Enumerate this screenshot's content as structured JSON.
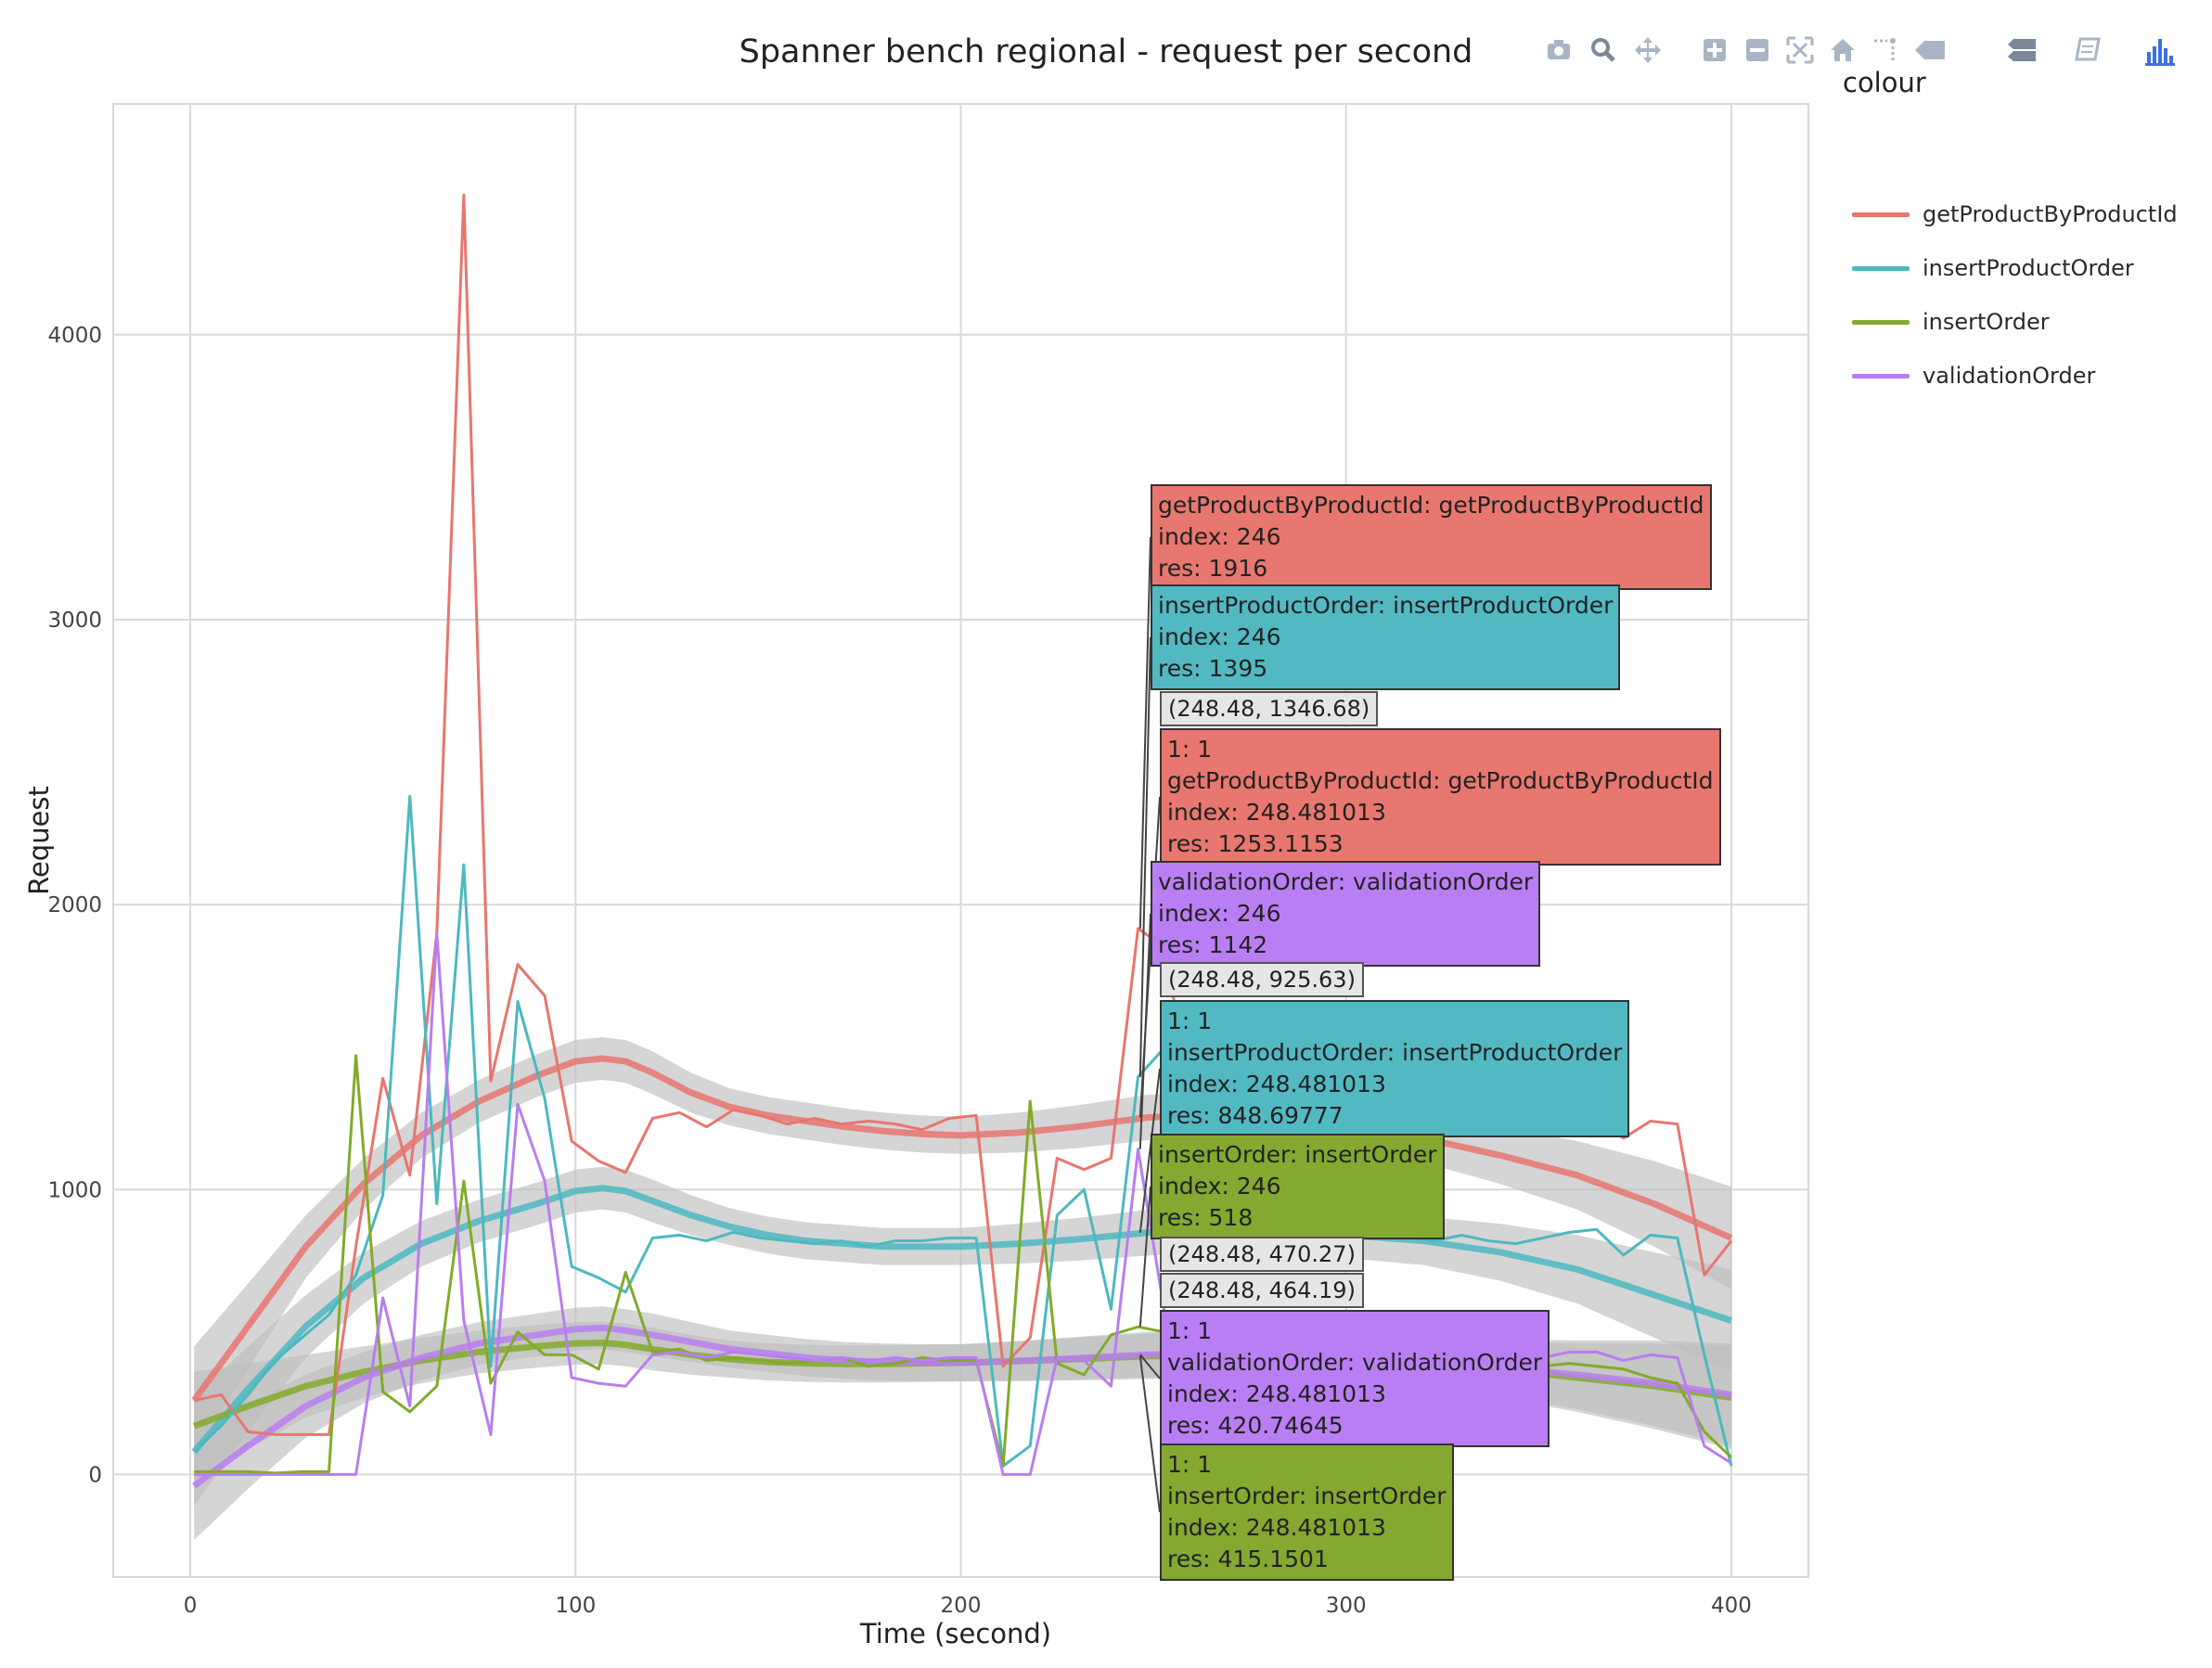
{
  "toolbar": {
    "buttons": [
      {
        "icon": "camera-icon",
        "label": "Download plot as a png"
      },
      {
        "icon": "zoom-icon",
        "label": "Zoom"
      },
      {
        "icon": "pan-icon",
        "label": "Pan"
      },
      {
        "icon": "zoom-in-icon",
        "label": "Zoom in"
      },
      {
        "icon": "zoom-out-icon",
        "label": "Zoom out"
      },
      {
        "icon": "autoscale-icon",
        "label": "Autoscale"
      },
      {
        "icon": "home-icon",
        "label": "Reset axes"
      },
      {
        "icon": "spike-lines-icon",
        "label": "Toggle Spike Lines"
      },
      {
        "icon": "hover-closest-icon",
        "label": "Show closest data on hover"
      },
      {
        "icon": "hover-compare-icon",
        "label": "Compare data on hover"
      },
      {
        "icon": "edit-chart-icon",
        "label": "Edit in Chart Studio"
      },
      {
        "icon": "plotly-logo-icon",
        "label": "Produced with Plotly"
      }
    ]
  },
  "chart_data": {
    "type": "line",
    "title": "Spanner bench regional - request per second",
    "xlabel": "Time (second)",
    "ylabel": "Request",
    "xlim": [
      -20,
      420
    ],
    "ylim": [
      -360,
      4810
    ],
    "xticks": [
      0,
      100,
      200,
      300,
      400
    ],
    "yticks": [
      0,
      1000,
      2000,
      3000,
      4000
    ],
    "grid": true,
    "legend_title": "colour",
    "legend_position": "right",
    "colors": {
      "getProductByProductId": "#E7766F",
      "insertProductOrder": "#4CB9BF",
      "insertOrder": "#83AA2A",
      "validationOrder": "#B87EF0",
      "smooth_band": "#BFBFBF"
    },
    "series": [
      {
        "name": "getProductByProductId",
        "x": [
          1,
          8,
          15,
          22,
          29,
          36,
          43,
          50,
          57,
          64,
          71,
          78,
          85,
          92,
          99,
          106,
          113,
          120,
          127,
          134,
          141,
          148,
          155,
          162,
          169,
          176,
          183,
          190,
          197,
          204,
          211,
          218,
          225,
          232,
          239,
          246,
          253,
          260,
          267,
          274,
          281,
          288,
          295,
          302,
          309,
          316,
          323,
          330,
          337,
          344,
          351,
          358,
          365,
          372,
          379,
          386,
          393,
          400
        ],
        "y": [
          260,
          280,
          150,
          140,
          140,
          140,
          800,
          1390,
          1050,
          1900,
          4490,
          1380,
          1790,
          1680,
          1170,
          1100,
          1060,
          1250,
          1270,
          1220,
          1280,
          1260,
          1230,
          1250,
          1230,
          1240,
          1230,
          1210,
          1250,
          1260,
          380,
          480,
          1110,
          1070,
          1110,
          1916,
          1850,
          1290,
          1240,
          1270,
          1250,
          1230,
          1250,
          1220,
          1240,
          1210,
          1190,
          1200,
          1230,
          1210,
          1260,
          1280,
          1250,
          1180,
          1240,
          1230,
          700,
          820
        ]
      },
      {
        "name": "insertProductOrder",
        "x": [
          1,
          8,
          15,
          22,
          29,
          36,
          43,
          50,
          57,
          64,
          71,
          78,
          85,
          92,
          99,
          106,
          113,
          120,
          127,
          134,
          141,
          148,
          155,
          162,
          169,
          176,
          183,
          190,
          197,
          204,
          211,
          218,
          225,
          232,
          239,
          246,
          253,
          260,
          267,
          274,
          281,
          288,
          295,
          302,
          309,
          316,
          323,
          330,
          337,
          344,
          351,
          358,
          365,
          372,
          379,
          386,
          393,
          400
        ],
        "y": [
          80,
          170,
          280,
          400,
          480,
          560,
          700,
          980,
          2380,
          950,
          2140,
          380,
          1660,
          1320,
          730,
          690,
          640,
          830,
          840,
          820,
          850,
          830,
          820,
          810,
          820,
          800,
          820,
          820,
          830,
          830,
          30,
          100,
          910,
          1000,
          580,
          1395,
          1500,
          1280,
          1100,
          1040,
          1000,
          960,
          900,
          860,
          840,
          830,
          820,
          840,
          820,
          810,
          830,
          850,
          860,
          770,
          840,
          830,
          420,
          30
        ]
      },
      {
        "name": "insertOrder",
        "x": [
          1,
          8,
          15,
          22,
          29,
          36,
          43,
          50,
          57,
          64,
          71,
          78,
          85,
          92,
          99,
          106,
          113,
          120,
          127,
          134,
          141,
          148,
          155,
          162,
          169,
          176,
          183,
          190,
          197,
          204,
          211,
          218,
          225,
          232,
          239,
          246,
          253,
          260,
          267,
          274,
          281,
          288,
          295,
          302,
          309,
          316,
          323,
          330,
          337,
          344,
          351,
          358,
          365,
          372,
          379,
          386,
          393,
          400
        ],
        "y": [
          10,
          10,
          10,
          5,
          10,
          10,
          1470,
          290,
          220,
          310,
          1030,
          320,
          500,
          420,
          420,
          370,
          710,
          430,
          440,
          400,
          410,
          400,
          390,
          400,
          410,
          380,
          390,
          410,
          400,
          400,
          30,
          1310,
          390,
          350,
          490,
          518,
          500,
          450,
          430,
          440,
          410,
          420,
          400,
          410,
          420,
          410,
          400,
          390,
          400,
          410,
          380,
          390,
          380,
          370,
          340,
          320,
          150,
          60
        ]
      },
      {
        "name": "validationOrder",
        "x": [
          1,
          8,
          15,
          22,
          29,
          36,
          43,
          50,
          57,
          64,
          71,
          78,
          85,
          92,
          99,
          106,
          113,
          120,
          127,
          134,
          141,
          148,
          155,
          162,
          169,
          176,
          183,
          190,
          197,
          204,
          211,
          218,
          225,
          232,
          239,
          246,
          253,
          260,
          267,
          274,
          281,
          288,
          295,
          302,
          309,
          316,
          323,
          330,
          337,
          344,
          351,
          358,
          365,
          372,
          379,
          386,
          393,
          400
        ],
        "y": [
          0,
          0,
          0,
          0,
          0,
          0,
          0,
          620,
          240,
          1900,
          540,
          140,
          1300,
          1030,
          340,
          320,
          310,
          420,
          430,
          410,
          430,
          420,
          410,
          400,
          410,
          400,
          410,
          400,
          410,
          410,
          0,
          0,
          410,
          400,
          310,
          1142,
          560,
          440,
          420,
          430,
          410,
          420,
          400,
          410,
          420,
          400,
          410,
          420,
          410,
          420,
          410,
          430,
          430,
          400,
          420,
          410,
          100,
          40
        ]
      }
    ],
    "smooth": [
      {
        "name": "getProductByProductId",
        "x": [
          1,
          15,
          30,
          45,
          60,
          75,
          90,
          100,
          107,
          113,
          120,
          130,
          140,
          150,
          160,
          170,
          180,
          190,
          200,
          215,
          230,
          248.48,
          260,
          280,
          300,
          320,
          340,
          360,
          380,
          400
        ],
        "y": [
          260,
          520,
          800,
          1020,
          1190,
          1310,
          1400,
          1450,
          1460,
          1450,
          1410,
          1340,
          1290,
          1260,
          1240,
          1220,
          1205,
          1195,
          1190,
          1200,
          1220,
          1253.1153,
          1260,
          1255,
          1220,
          1180,
          1120,
          1050,
          950,
          830
        ],
        "band": [
          190,
          150,
          110,
          90,
          80,
          75,
          75,
          75,
          75,
          75,
          75,
          70,
          65,
          65,
          65,
          65,
          65,
          65,
          65,
          70,
          75,
          80,
          80,
          80,
          80,
          85,
          100,
          120,
          150,
          180
        ]
      },
      {
        "name": "insertProductOrder",
        "x": [
          1,
          15,
          30,
          45,
          60,
          75,
          90,
          100,
          107,
          113,
          120,
          130,
          140,
          150,
          160,
          170,
          180,
          190,
          200,
          215,
          230,
          248.48,
          260,
          280,
          300,
          320,
          340,
          360,
          380,
          400
        ],
        "y": [
          80,
          300,
          520,
          690,
          810,
          890,
          950,
          995,
          1005,
          995,
          960,
          910,
          870,
          840,
          820,
          810,
          800,
          800,
          800,
          810,
          825,
          848.69777,
          855,
          850,
          840,
          820,
          780,
          720,
          630,
          540
        ],
        "band": [
          190,
          150,
          110,
          90,
          80,
          75,
          75,
          75,
          75,
          75,
          75,
          70,
          65,
          65,
          65,
          65,
          65,
          65,
          65,
          70,
          75,
          80,
          80,
          80,
          80,
          85,
          100,
          120,
          150,
          180
        ]
      },
      {
        "name": "insertOrder",
        "x": [
          1,
          15,
          30,
          45,
          60,
          75,
          90,
          100,
          107,
          113,
          120,
          130,
          140,
          150,
          160,
          170,
          180,
          190,
          200,
          215,
          230,
          248.48,
          260,
          280,
          300,
          320,
          340,
          360,
          380,
          400
        ],
        "y": [
          170,
          240,
          310,
          360,
          400,
          430,
          450,
          460,
          462,
          455,
          440,
          420,
          405,
          395,
          390,
          388,
          388,
          390,
          392,
          398,
          405,
          415.1501,
          418,
          415,
          405,
          390,
          370,
          340,
          310,
          270
        ],
        "band": [
          190,
          150,
          110,
          90,
          80,
          75,
          75,
          75,
          75,
          75,
          75,
          70,
          65,
          65,
          65,
          65,
          65,
          65,
          65,
          70,
          75,
          80,
          80,
          80,
          80,
          85,
          100,
          120,
          150,
          180
        ]
      },
      {
        "name": "validationOrder",
        "x": [
          1,
          15,
          30,
          45,
          60,
          75,
          90,
          100,
          107,
          113,
          120,
          130,
          140,
          150,
          160,
          170,
          180,
          190,
          200,
          215,
          230,
          248.48,
          260,
          280,
          300,
          320,
          340,
          360,
          380,
          400
        ],
        "y": [
          -40,
          100,
          240,
          340,
          410,
          460,
          490,
          510,
          515,
          505,
          490,
          465,
          440,
          425,
          410,
          400,
          395,
          392,
          392,
          398,
          408,
          420.74645,
          425,
          420,
          410,
          395,
          375,
          350,
          320,
          280
        ],
        "band": [
          190,
          150,
          110,
          90,
          80,
          75,
          75,
          75,
          75,
          75,
          75,
          70,
          65,
          65,
          65,
          65,
          65,
          65,
          65,
          70,
          75,
          80,
          80,
          80,
          80,
          85,
          100,
          120,
          150,
          180
        ]
      }
    ],
    "hover": {
      "x": 248.48,
      "labels": [
        {
          "series": "getProductByProductId",
          "color": "#E8776F",
          "lines": [
            "getProductByProductId: getProductByProductId",
            "index: 246",
            "res: 1916"
          ]
        },
        {
          "series": "insertProductOrder",
          "color": "#52B9C2",
          "lines": [
            "insertProductOrder: insertProductOrder",
            "index: 246",
            "res: 1395"
          ]
        },
        {
          "series": "coord",
          "color": "#e6e6e6",
          "lines": [
            "(248.48, 1346.68)"
          ]
        },
        {
          "series": "getProductByProductId",
          "color": "#E8776F",
          "lines": [
            "1: 1",
            "getProductByProductId: getProductByProductId",
            "index: 248.481013",
            "res: 1253.1153"
          ]
        },
        {
          "series": "validationOrder",
          "color": "#BA7EF4",
          "lines": [
            "validationOrder: validationOrder",
            "index: 246",
            "res: 1142"
          ]
        },
        {
          "series": "coord",
          "color": "#e6e6e6",
          "lines": [
            "(248.48, 925.63)"
          ]
        },
        {
          "series": "insertProductOrder",
          "color": "#52B9C2",
          "lines": [
            "1: 1",
            "insertProductOrder: insertProductOrder",
            "index: 248.481013",
            "res: 848.69777"
          ]
        },
        {
          "series": "insertOrder",
          "color": "#85A831",
          "lines": [
            "insertOrder: insertOrder",
            "index: 246",
            "res: 518"
          ]
        },
        {
          "series": "coord",
          "color": "#e6e6e6",
          "lines": [
            "(248.48, 470.27)"
          ]
        },
        {
          "series": "coord",
          "color": "#e6e6e6",
          "lines": [
            "(248.48, 464.19)"
          ]
        },
        {
          "series": "validationOrder",
          "color": "#BA7EF4",
          "lines": [
            "1: 1",
            "validationOrder: validationOrder",
            "index: 248.481013",
            "res: 420.74645"
          ]
        },
        {
          "series": "insertOrder",
          "color": "#85A831",
          "lines": [
            "1: 1",
            "insertOrder: insertOrder",
            "index: 248.481013",
            "res: 415.1501"
          ]
        }
      ]
    }
  }
}
